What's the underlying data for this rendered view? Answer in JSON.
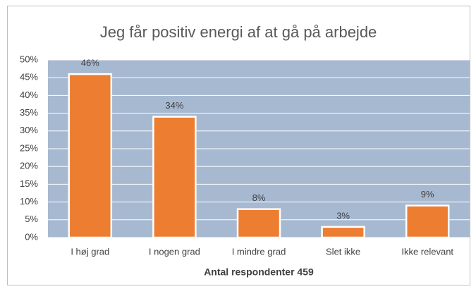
{
  "chart_data": {
    "type": "bar",
    "title": "Jeg får positiv energi af at gå på arbejde",
    "categories": [
      "I høj grad",
      "I nogen grad",
      "I mindre grad",
      "Slet ikke",
      "Ikke relevant"
    ],
    "values": [
      46,
      34,
      8,
      3,
      9
    ],
    "value_labels": [
      "46%",
      "34%",
      "8%",
      "3%",
      "9%"
    ],
    "color": "#ed7d31",
    "xlabel": "Antal respondenter 459",
    "ylim": [
      0,
      50
    ],
    "yticks": [
      {
        "value": 0,
        "label": "0%"
      },
      {
        "value": 5,
        "label": "5%"
      },
      {
        "value": 10,
        "label": "10%"
      },
      {
        "value": 15,
        "label": "15%"
      },
      {
        "value": 20,
        "label": "20%"
      },
      {
        "value": 25,
        "label": "25%"
      },
      {
        "value": 30,
        "label": "30%"
      },
      {
        "value": 35,
        "label": "35%"
      },
      {
        "value": 40,
        "label": "40%"
      },
      {
        "value": 45,
        "label": "45%"
      },
      {
        "value": 50,
        "label": "50%"
      }
    ],
    "grid": true
  }
}
